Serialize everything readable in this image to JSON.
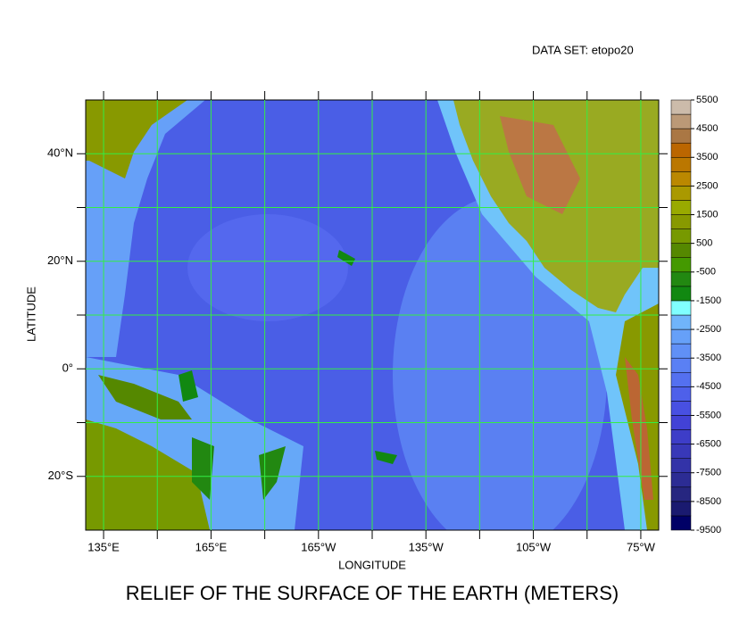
{
  "map": {
    "dataset_label": "DATA SET: etopo20",
    "title": "RELIEF OF THE SURFACE OF THE EARTH (METERS)",
    "xlabel": "LONGITUDE",
    "ylabel": "LATITUDE",
    "xlim": [
      130,
      290
    ],
    "ylim": [
      -30,
      50
    ],
    "xticks": [
      {
        "value": 135,
        "label": "135°E"
      },
      {
        "value": 165,
        "label": "165°E"
      },
      {
        "value": 195,
        "label": "165°W"
      },
      {
        "value": 225,
        "label": "135°W"
      },
      {
        "value": 255,
        "label": "105°W"
      },
      {
        "value": 285,
        "label": "75°W"
      }
    ],
    "xminor": [
      150,
      180,
      210,
      240,
      270
    ],
    "yticks": [
      {
        "value": 40,
        "label": "40°N"
      },
      {
        "value": 20,
        "label": "20°N"
      },
      {
        "value": 0,
        "label": "0°"
      },
      {
        "value": -20,
        "label": "20°S"
      }
    ],
    "yminor": [
      30,
      10,
      -10
    ],
    "grid_color": "#33ee44",
    "colorbar": {
      "range": [
        -9500,
        5500
      ],
      "levels": [
        5500,
        4500,
        3500,
        2500,
        1500,
        500,
        -500,
        -1500,
        -2500,
        -3500,
        -4500,
        -5500,
        -6500,
        -7500,
        -8500,
        -9500
      ],
      "colors": [
        "#000066",
        "#1a1a70",
        "#262680",
        "#2c2c94",
        "#3333a8",
        "#3838b8",
        "#3d3dc8",
        "#4242d6",
        "#4850e2",
        "#4e60ea",
        "#5470f0",
        "#5a80f4",
        "#6090f6",
        "#66a0f8",
        "#70b4fa",
        "#80ffff",
        "#118811",
        "#228811",
        "#449900",
        "#558800",
        "#779900",
        "#889900",
        "#99aa00",
        "#aa9900",
        "#bb8800",
        "#bb7700",
        "#bb6600",
        "#aa7744",
        "#bb9977",
        "#ccbbaa"
      ]
    }
  }
}
